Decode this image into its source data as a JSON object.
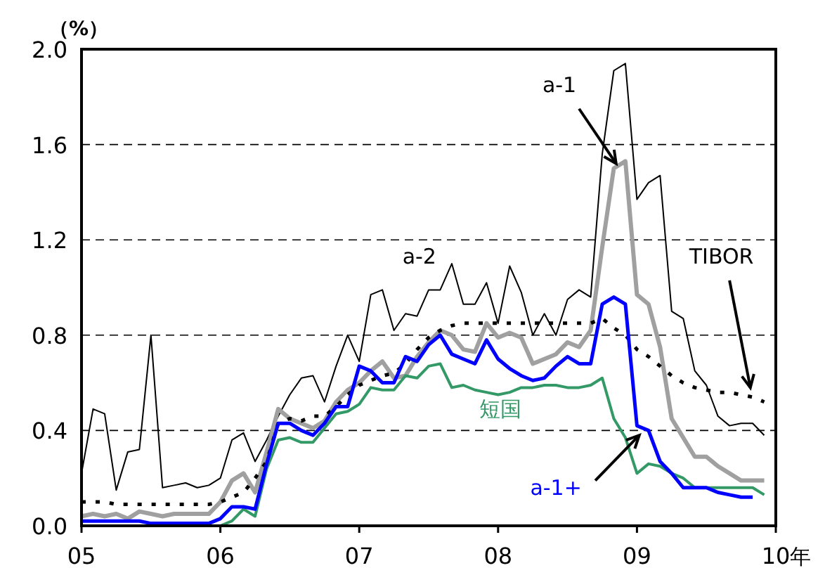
{
  "chart_data": {
    "type": "line",
    "ylabel": "（%）",
    "xlabel": "年",
    "grid": "y",
    "legend": false,
    "x": [
      "2005-01",
      "2005-02",
      "2005-03",
      "2005-04",
      "2005-05",
      "2005-06",
      "2005-07",
      "2005-08",
      "2005-09",
      "2005-10",
      "2005-11",
      "2005-12",
      "2006-01",
      "2006-02",
      "2006-03",
      "2006-04",
      "2006-05",
      "2006-06",
      "2006-07",
      "2006-08",
      "2006-09",
      "2006-10",
      "2006-11",
      "2006-12",
      "2007-01",
      "2007-02",
      "2007-03",
      "2007-04",
      "2007-05",
      "2007-06",
      "2007-07",
      "2007-08",
      "2007-09",
      "2007-10",
      "2007-11",
      "2007-12",
      "2008-01",
      "2008-02",
      "2008-03",
      "2008-04",
      "2008-05",
      "2008-06",
      "2008-07",
      "2008-08",
      "2008-09",
      "2008-10",
      "2008-11",
      "2008-12",
      "2009-01",
      "2009-02",
      "2009-03",
      "2009-04",
      "2009-05",
      "2009-06",
      "2009-07",
      "2009-08",
      "2009-09",
      "2009-10",
      "2009-11",
      "2009-12"
    ],
    "xlim": [
      "2005-01",
      "2010-01"
    ],
    "xticks": [
      {
        "value": "2005-01",
        "label": "05"
      },
      {
        "value": "2006-01",
        "label": "06"
      },
      {
        "value": "2007-01",
        "label": "07"
      },
      {
        "value": "2008-01",
        "label": "08"
      },
      {
        "value": "2009-01",
        "label": "09"
      },
      {
        "value": "2010-01",
        "label": "10"
      }
    ],
    "ylim": [
      0,
      2
    ],
    "yticks": [
      {
        "value": 0,
        "label": "0.0"
      },
      {
        "value": 0.4,
        "label": "0.4"
      },
      {
        "value": 0.8,
        "label": "0.8"
      },
      {
        "value": 1.2,
        "label": "1.2"
      },
      {
        "value": 1.6,
        "label": "1.6"
      },
      {
        "value": 2,
        "label": "2.0"
      }
    ],
    "series": [
      {
        "name": "a-2",
        "color": "#000000",
        "values": [
          0.22,
          0.49,
          0.47,
          0.15,
          0.31,
          0.32,
          0.8,
          0.16,
          0.17,
          0.18,
          0.16,
          0.17,
          0.2,
          0.36,
          0.39,
          0.27,
          0.36,
          0.46,
          0.55,
          0.62,
          0.63,
          0.52,
          0.67,
          0.8,
          0.69,
          0.97,
          0.99,
          0.82,
          0.89,
          0.88,
          0.99,
          0.99,
          1.1,
          0.93,
          0.93,
          1.02,
          0.85,
          1.09,
          0.98,
          0.8,
          0.89,
          0.8,
          0.95,
          0.99,
          0.96,
          1.56,
          1.91,
          1.94,
          1.37,
          1.44,
          1.47,
          0.9,
          0.87,
          0.65,
          0.59,
          0.46,
          0.42,
          0.43,
          0.43,
          0.38
        ]
      },
      {
        "name": "a-1",
        "color": "#a0a0a0",
        "values": [
          0.04,
          0.05,
          0.04,
          0.05,
          0.03,
          0.06,
          0.05,
          0.04,
          0.05,
          0.05,
          0.05,
          0.05,
          0.1,
          0.19,
          0.22,
          0.14,
          0.31,
          0.49,
          0.45,
          0.43,
          0.41,
          0.44,
          0.52,
          0.57,
          0.6,
          0.65,
          0.69,
          0.62,
          0.63,
          0.71,
          0.77,
          0.82,
          0.8,
          0.74,
          0.73,
          0.85,
          0.79,
          0.81,
          0.79,
          0.68,
          0.7,
          0.72,
          0.77,
          0.75,
          0.82,
          1.17,
          1.5,
          1.53,
          0.97,
          0.93,
          0.75,
          0.45,
          0.37,
          0.29,
          0.29,
          0.25,
          0.22,
          0.19,
          0.19,
          0.19
        ]
      },
      {
        "name": "TIBOR",
        "color": "#000000",
        "line_style": "dotted",
        "values": [
          0.1,
          0.1,
          0.1,
          0.09,
          0.09,
          0.09,
          0.09,
          0.09,
          0.09,
          0.09,
          0.09,
          0.09,
          0.1,
          0.12,
          0.14,
          0.2,
          0.27,
          0.43,
          0.45,
          0.44,
          0.46,
          0.46,
          0.5,
          0.55,
          0.59,
          0.61,
          0.63,
          0.64,
          0.68,
          0.74,
          0.79,
          0.82,
          0.84,
          0.85,
          0.85,
          0.85,
          0.85,
          0.85,
          0.85,
          0.85,
          0.85,
          0.85,
          0.85,
          0.85,
          0.85,
          0.87,
          0.83,
          0.8,
          0.74,
          0.71,
          0.67,
          0.63,
          0.6,
          0.58,
          0.57,
          0.56,
          0.56,
          0.55,
          0.54,
          0.52
        ]
      },
      {
        "name": "短国",
        "color": "#339966",
        "values": [
          null,
          null,
          null,
          null,
          null,
          null,
          null,
          null,
          null,
          null,
          null,
          null,
          0.0,
          0.02,
          0.07,
          0.04,
          0.24,
          0.36,
          0.37,
          0.35,
          0.35,
          0.41,
          0.47,
          0.48,
          0.51,
          0.58,
          0.57,
          0.57,
          0.63,
          0.62,
          0.67,
          0.68,
          0.58,
          0.59,
          0.57,
          0.56,
          0.55,
          0.56,
          0.58,
          0.58,
          0.59,
          0.59,
          0.58,
          0.58,
          0.59,
          0.62,
          0.45,
          0.37,
          0.22,
          0.26,
          0.25,
          0.22,
          0.2,
          0.16,
          0.16,
          0.16,
          0.16,
          0.16,
          0.16,
          0.13
        ]
      },
      {
        "name": "a-1+",
        "color": "#0000ff",
        "values": [
          0.02,
          0.02,
          0.02,
          0.02,
          0.02,
          0.02,
          0.01,
          0.01,
          0.01,
          0.01,
          0.01,
          0.01,
          0.03,
          0.08,
          0.08,
          0.07,
          0.26,
          0.43,
          0.43,
          0.4,
          0.38,
          0.43,
          0.5,
          0.5,
          0.67,
          0.65,
          0.6,
          0.6,
          0.71,
          0.69,
          0.76,
          0.8,
          0.72,
          0.7,
          0.68,
          0.78,
          0.7,
          0.66,
          0.63,
          0.61,
          0.62,
          0.67,
          0.71,
          0.68,
          0.68,
          0.93,
          0.96,
          0.93,
          0.42,
          0.4,
          0.27,
          0.22,
          0.16,
          0.16,
          0.16,
          0.14,
          0.13,
          0.12,
          0.12,
          null
        ]
      }
    ]
  }
}
